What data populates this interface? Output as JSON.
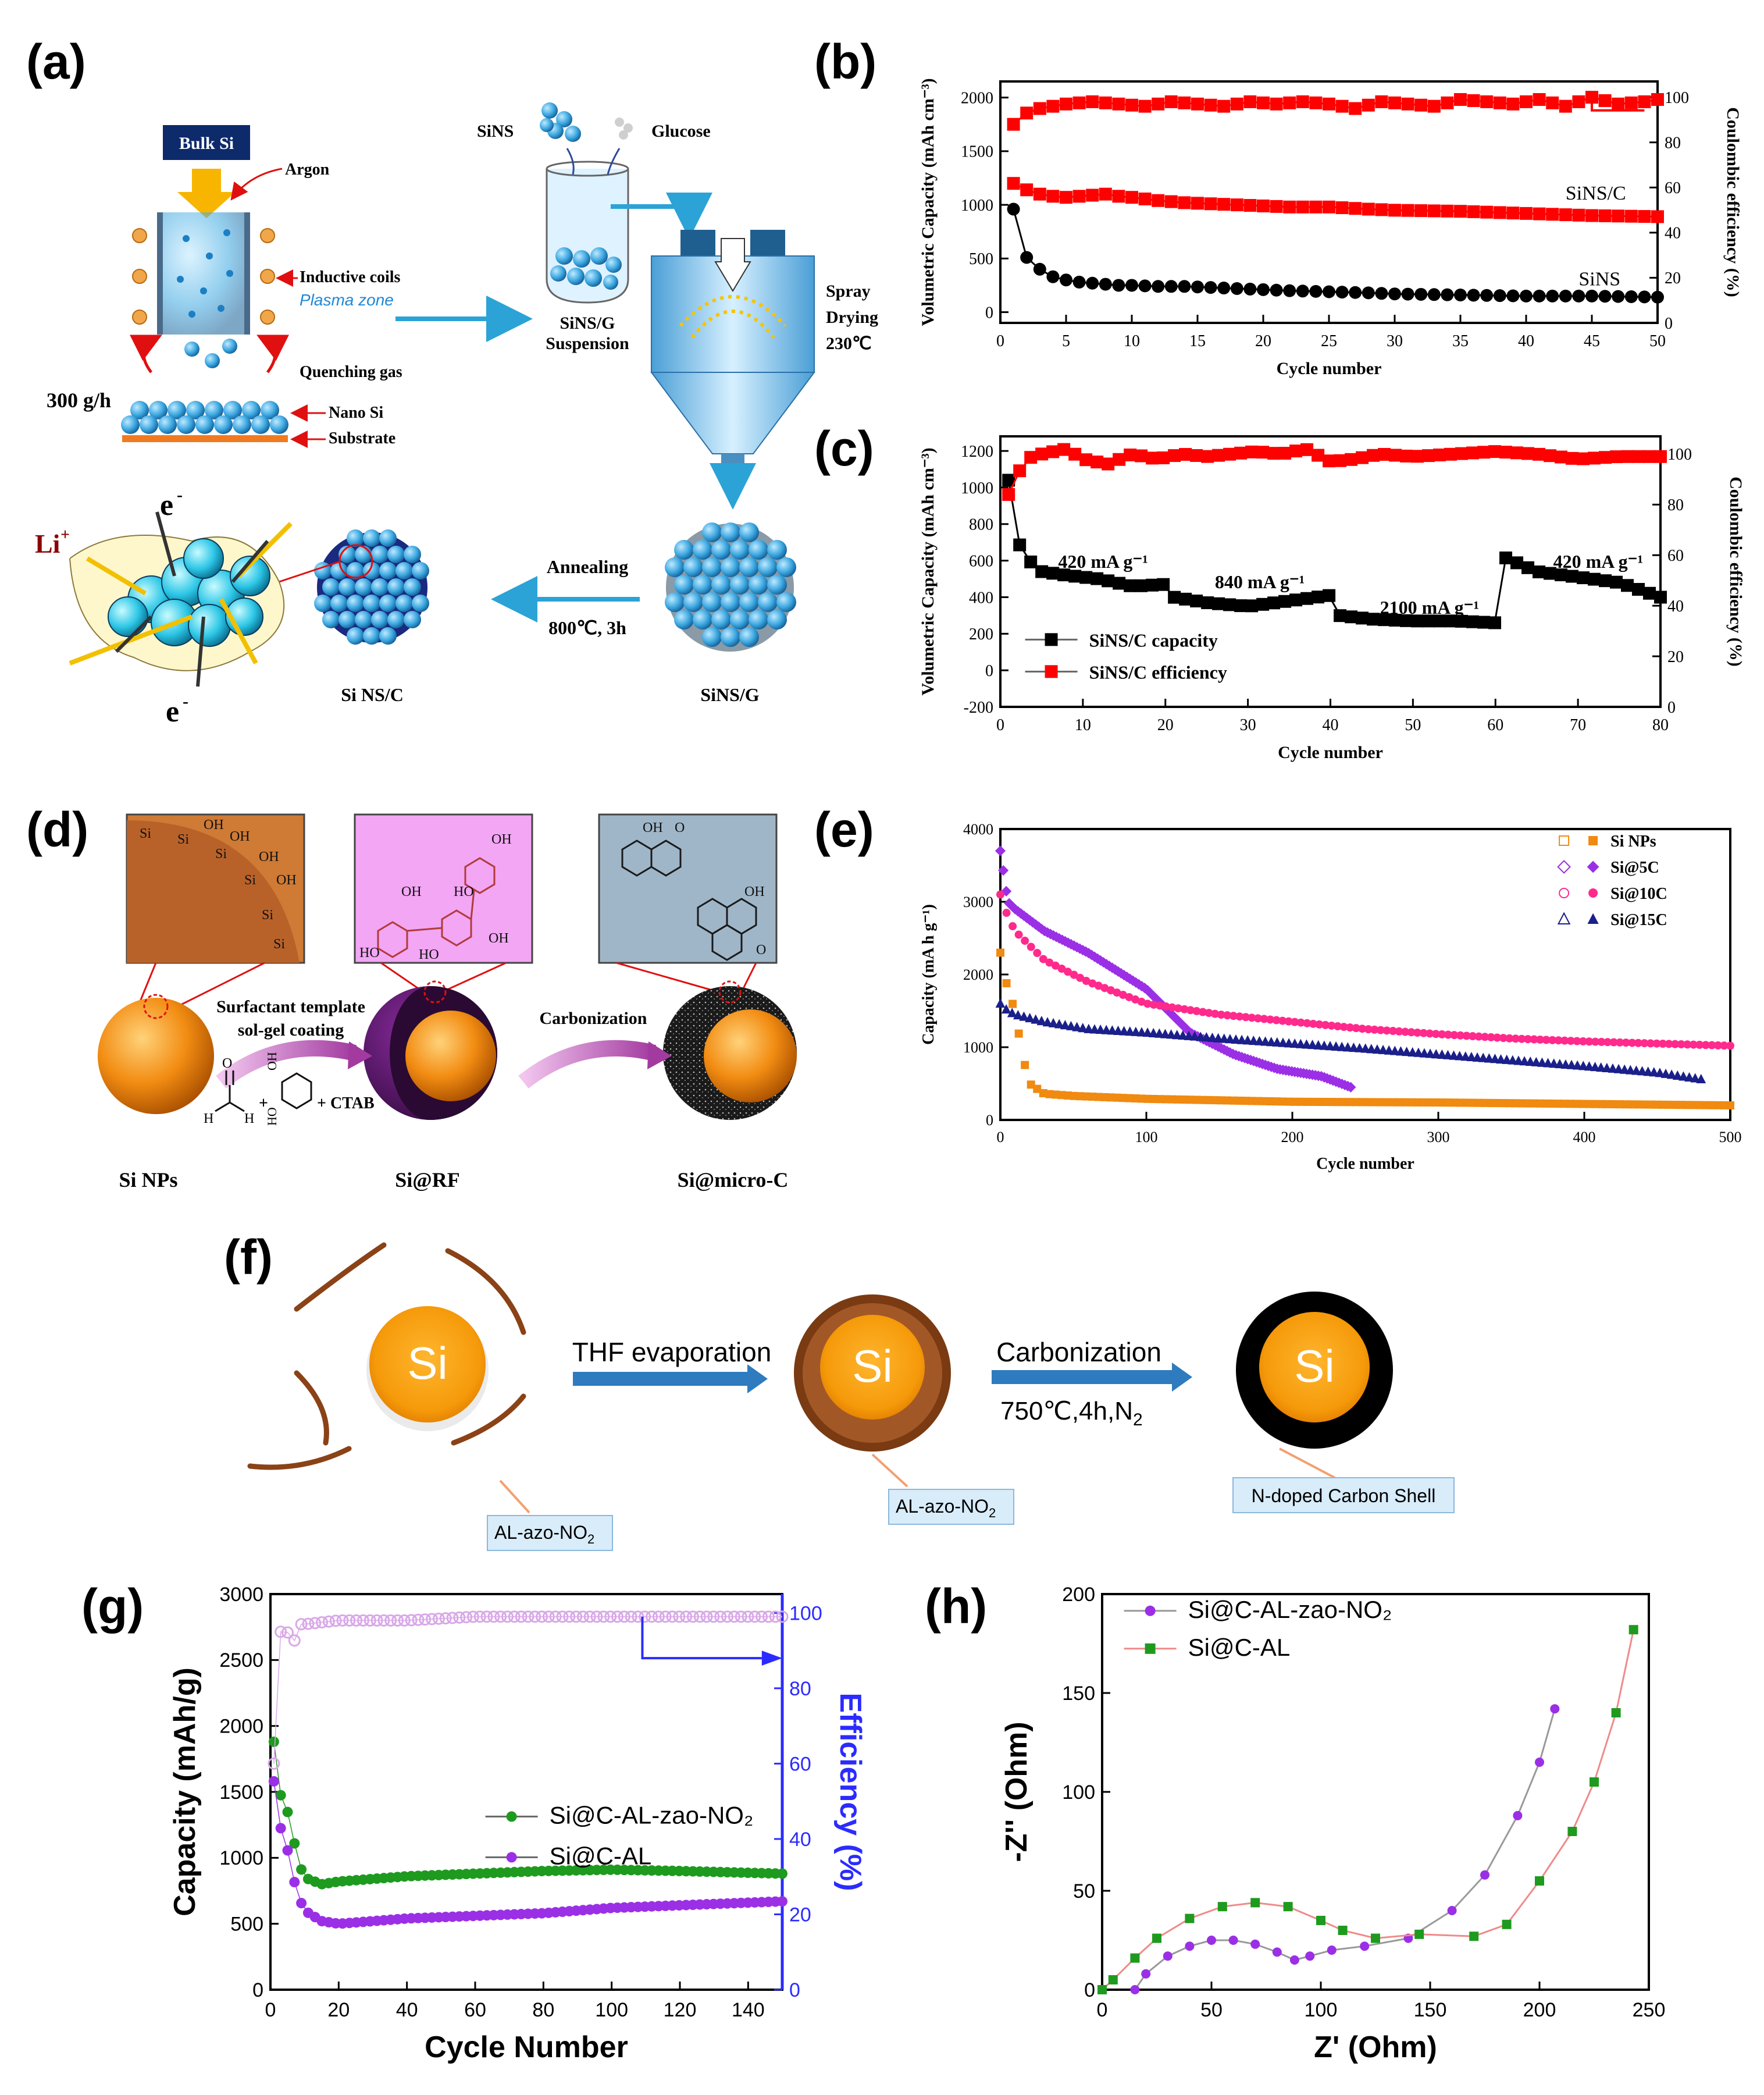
{
  "panel_labels": {
    "a": "(a)",
    "b": "(b)",
    "c": "(c)",
    "d": "(d)",
    "e": "(e)",
    "f": "(f)",
    "g": "(g)",
    "h": "(h)"
  },
  "colors": {
    "si_orange": "#f08a10",
    "si_sphere": "#3ba7e0",
    "red": "#ff0000",
    "green": "#1e9a1e",
    "purple": "#9b2fe6",
    "pink": "#ff2a8c",
    "navy": "#1a1f8a",
    "blue_axis": "#2b2bff",
    "brown": "#8a4216"
  },
  "panel_a": {
    "bulk_si": "Bulk Si",
    "argon": "Argon",
    "inductive_coils": "Inductive coils",
    "plasma_zone": "Plasma zone",
    "quenching_gas": "Quenching gas",
    "rate": "300 g/h",
    "nano_si": "Nano Si",
    "substrate": "Substrate",
    "sins": "SiNS",
    "glucose": "Glucose",
    "suspension_1": "SiNS/G",
    "suspension_2": "Suspension",
    "spray_1": "Spray",
    "spray_2": "Drying",
    "spray_3": "230℃",
    "annealing": "Annealing",
    "anneal_cond": "800℃, 3h",
    "sinsc": "Si NS/C",
    "sinsg": "SiNS/G",
    "li": "Li",
    "li_sup": "+",
    "e": "e",
    "e_sup": "-"
  },
  "panel_d": {
    "surfactant_1": "Surfactant template",
    "surfactant_2": "sol-gel coating",
    "carbonization": "Carbonization",
    "ctab": "+ CTAB",
    "plus": "+",
    "si_nps": "Si NPs",
    "si_rf": "Si@RF",
    "si_micro_c": "Si@micro-C",
    "si": "Si",
    "oh": "OH",
    "ho": "HO",
    "o": "O",
    "h": "H"
  },
  "panel_f": {
    "si": "Si",
    "thf": "THF evaporation",
    "carbonization": "Carbonization",
    "cond": "750℃,4h,N",
    "cond_sub": "2",
    "al_azo": "AL-azo-NO",
    "al_azo_sub": "2",
    "ndoped": "N-doped Carbon Shell"
  },
  "chart_data": [
    {
      "id": "b",
      "type": "scatter",
      "xlabel": "Cycle number",
      "ylabel": "Volumetric Capacity (mAh cm⁻³)",
      "y2label": "Coulombic efficiency (%)",
      "xlim": [
        0,
        50
      ],
      "ylim": [
        -100,
        2150
      ],
      "y2lim": [
        0,
        107
      ],
      "xticks": [
        0,
        5,
        10,
        15,
        20,
        25,
        30,
        35,
        40,
        45,
        50
      ],
      "yticks": [
        0,
        500,
        1000,
        1500,
        2000
      ],
      "y2ticks": [
        0,
        20,
        40,
        60,
        80,
        100
      ],
      "annotations": [
        "SiNS/C",
        "SiNS"
      ],
      "series": [
        {
          "name": "SiNS/C",
          "marker": "square",
          "color": "#ff0000",
          "x": [
            1,
            2,
            3,
            4,
            5,
            6,
            7,
            8,
            9,
            10,
            12,
            14,
            16,
            18,
            20,
            22,
            25,
            28,
            30,
            35,
            40,
            45,
            50
          ],
          "y": [
            1200,
            1140,
            1100,
            1080,
            1070,
            1080,
            1090,
            1100,
            1080,
            1070,
            1040,
            1020,
            1010,
            1000,
            990,
            980,
            980,
            960,
            950,
            940,
            920,
            900,
            890
          ]
        },
        {
          "name": "SiNS",
          "marker": "circle",
          "color": "#000000",
          "x": [
            1,
            2,
            3,
            4,
            5,
            6,
            7,
            8,
            9,
            10,
            12,
            14,
            16,
            18,
            20,
            22,
            25,
            28,
            30,
            35,
            40,
            45,
            50
          ],
          "y": [
            960,
            510,
            400,
            330,
            300,
            280,
            270,
            260,
            250,
            250,
            240,
            240,
            230,
            220,
            210,
            200,
            190,
            180,
            170,
            160,
            150,
            150,
            140
          ]
        },
        {
          "name": "SiNS/C efficiency",
          "axis": "right",
          "marker": "square",
          "color": "#ff0000",
          "x": [
            1,
            2,
            3,
            4,
            5,
            7,
            9,
            11,
            13,
            15,
            17,
            19,
            21,
            23,
            25,
            27,
            29,
            31,
            33,
            35,
            37,
            39,
            41,
            43,
            45,
            47,
            49,
            50
          ],
          "y": [
            88,
            93,
            95,
            96,
            97,
            98,
            97,
            96,
            98,
            97,
            96,
            98,
            97,
            98,
            97,
            95,
            98,
            97,
            96,
            99,
            98,
            97,
            99,
            96,
            100,
            97,
            98,
            99
          ]
        }
      ]
    },
    {
      "id": "c",
      "type": "scatter",
      "xlabel": "Cycle number",
      "ylabel": "Volumetric Capacity (mAh cm⁻³)",
      "y2label": "Coulombic efficiency (%)",
      "xlim": [
        0,
        80
      ],
      "ylim": [
        -200,
        1280
      ],
      "y2lim": [
        0,
        107
      ],
      "xticks": [
        0,
        10,
        20,
        30,
        40,
        50,
        60,
        70,
        80
      ],
      "yticks": [
        -200,
        0,
        200,
        400,
        600,
        800,
        1000,
        1200
      ],
      "y2ticks": [
        0,
        20,
        40,
        60,
        80,
        100
      ],
      "annotations": [
        "420 mA g⁻¹",
        "840 mA g⁻¹",
        "2100 mA g⁻¹",
        "420 mA g⁻¹"
      ],
      "legend": [
        "SiNS/C capacity",
        "SiNS/C efficiency"
      ],
      "series": [
        {
          "name": "SiNS/C capacity",
          "marker": "square",
          "color": "#000000",
          "x": [
            1,
            2,
            3,
            5,
            8,
            12,
            16,
            20,
            21,
            25,
            30,
            35,
            40,
            41,
            45,
            50,
            55,
            60,
            61,
            65,
            70,
            75,
            80
          ],
          "y": [
            1040,
            720,
            620,
            540,
            520,
            500,
            460,
            470,
            400,
            370,
            350,
            380,
            410,
            300,
            280,
            270,
            270,
            260,
            620,
            540,
            510,
            480,
            400
          ]
        },
        {
          "name": "SiNS/C efficiency",
          "axis": "right",
          "marker": "square",
          "color": "#ff0000",
          "x": [
            1,
            2,
            3,
            5,
            8,
            10,
            13,
            16,
            19,
            22,
            25,
            28,
            31,
            34,
            37,
            40,
            43,
            46,
            50,
            55,
            60,
            65,
            70,
            75,
            80
          ],
          "y": [
            84,
            91,
            98,
            100,
            102,
            98,
            96,
            100,
            98,
            100,
            99,
            100,
            101,
            100,
            102,
            97,
            98,
            100,
            99,
            100,
            101,
            100,
            98,
            99,
            99
          ]
        }
      ]
    },
    {
      "id": "e",
      "type": "scatter",
      "xlabel": "Cycle number",
      "ylabel": "Capacity (mA h g⁻¹)",
      "xlim": [
        0,
        500
      ],
      "ylim": [
        0,
        4000
      ],
      "xticks": [
        0,
        100,
        200,
        300,
        400,
        500
      ],
      "yticks": [
        0,
        1000,
        2000,
        3000,
        4000
      ],
      "legend": [
        "Si NPs",
        "Si@5C",
        "Si@10C",
        "Si@15C"
      ],
      "series": [
        {
          "name": "Si NPs",
          "marker": "square",
          "color": "#f08a10",
          "x": [
            0,
            5,
            10,
            15,
            20,
            30,
            50,
            100,
            200,
            300,
            400,
            500
          ],
          "y": [
            2300,
            1800,
            1500,
            900,
            500,
            360,
            330,
            290,
            250,
            240,
            220,
            200
          ]
        },
        {
          "name": "Si@5C",
          "marker": "diamond",
          "color": "#9b2fe6",
          "x": [
            0,
            3,
            5,
            10,
            30,
            60,
            100,
            130,
            160,
            190,
            220,
            240
          ],
          "y": [
            3700,
            3300,
            3000,
            2900,
            2600,
            2300,
            1800,
            1200,
            900,
            700,
            600,
            450
          ]
        },
        {
          "name": "Si@10C",
          "marker": "circle",
          "color": "#ff2a8c",
          "x": [
            0,
            5,
            10,
            30,
            60,
            100,
            150,
            200,
            250,
            300,
            350,
            400,
            450,
            500
          ],
          "y": [
            3100,
            2800,
            2600,
            2200,
            1900,
            1600,
            1450,
            1350,
            1250,
            1180,
            1120,
            1080,
            1050,
            1020
          ]
        },
        {
          "name": "Si@15C",
          "marker": "triangle",
          "color": "#1a1f8a",
          "x": [
            0,
            5,
            10,
            30,
            60,
            100,
            150,
            200,
            250,
            300,
            350,
            400,
            450,
            480
          ],
          "y": [
            1600,
            1500,
            1450,
            1350,
            1250,
            1200,
            1120,
            1050,
            980,
            900,
            820,
            740,
            650,
            560
          ]
        }
      ]
    },
    {
      "id": "g",
      "type": "scatter",
      "xlabel": "Cycle Number",
      "ylabel": "Capacity (mAh/g)",
      "y2label": "Efficiency (%)",
      "xlim": [
        0,
        150
      ],
      "ylim": [
        0,
        3000
      ],
      "y2lim": [
        0,
        105
      ],
      "xticks": [
        0,
        20,
        40,
        60,
        80,
        100,
        120,
        140
      ],
      "yticks": [
        0,
        500,
        1000,
        1500,
        2000,
        2500,
        3000
      ],
      "y2ticks": [
        0,
        20,
        40,
        60,
        80,
        100
      ],
      "legend": [
        "Si@C-AL-zao-NO₂",
        "Si@C-AL"
      ],
      "series": [
        {
          "name": "Si@C-AL-zao-NO₂",
          "marker": "circle",
          "color": "#1e9a1e",
          "x": [
            1,
            2,
            4,
            6,
            8,
            10,
            15,
            20,
            30,
            40,
            60,
            80,
            100,
            120,
            150
          ],
          "y": [
            1880,
            1500,
            1450,
            1250,
            980,
            850,
            800,
            820,
            840,
            860,
            880,
            900,
            910,
            900,
            880
          ]
        },
        {
          "name": "Si@C-AL",
          "marker": "circle",
          "color": "#9b2fe6",
          "x": [
            1,
            2,
            4,
            6,
            8,
            10,
            15,
            20,
            30,
            40,
            60,
            80,
            100,
            120,
            150
          ],
          "y": [
            1580,
            1250,
            1200,
            920,
            720,
            600,
            520,
            500,
            520,
            540,
            560,
            580,
            620,
            640,
            670
          ]
        },
        {
          "name": "Efficiency",
          "axis": "right",
          "marker": "open-circle",
          "color": "#d9a8e8",
          "x": [
            1,
            2,
            3,
            5,
            6,
            8,
            10,
            20,
            40,
            60,
            80,
            100,
            120,
            150
          ],
          "y": [
            60,
            85,
            95,
            95,
            88,
            97,
            97,
            98,
            98,
            99,
            99,
            99,
            99,
            99
          ]
        }
      ]
    },
    {
      "id": "h",
      "type": "line",
      "xlabel": "Z' (Ohm)",
      "ylabel": "-Z'' (Ohm)",
      "xlim": [
        0,
        250
      ],
      "ylim": [
        0,
        200
      ],
      "xticks": [
        0,
        50,
        100,
        150,
        200,
        250
      ],
      "yticks": [
        0,
        50,
        100,
        150,
        200
      ],
      "legend": [
        "Si@C-AL-zao-NO₂",
        "Si@C-AL"
      ],
      "series": [
        {
          "name": "Si@C-AL-zao-NO₂",
          "marker": "circle",
          "color": "#9b2fe6",
          "x": [
            15,
            20,
            30,
            40,
            50,
            60,
            70,
            80,
            88,
            95,
            105,
            120,
            140,
            160,
            175,
            190,
            200,
            207
          ],
          "y": [
            0,
            8,
            17,
            22,
            25,
            25,
            23,
            19,
            15,
            17,
            20,
            22,
            26,
            40,
            58,
            88,
            115,
            142
          ]
        },
        {
          "name": "Si@C-AL",
          "marker": "square",
          "color": "#1e9a1e",
          "x": [
            0,
            5,
            15,
            25,
            40,
            55,
            70,
            85,
            100,
            110,
            125,
            145,
            170,
            185,
            200,
            215,
            225,
            235,
            243
          ],
          "y": [
            0,
            5,
            16,
            26,
            36,
            42,
            44,
            42,
            35,
            30,
            26,
            28,
            27,
            33,
            55,
            80,
            105,
            140,
            182
          ]
        }
      ]
    }
  ]
}
